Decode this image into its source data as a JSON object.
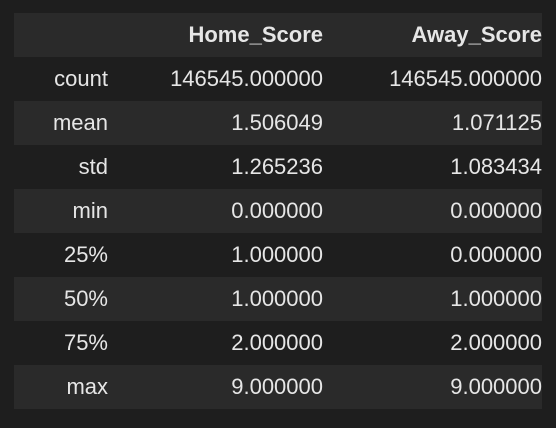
{
  "table": {
    "columns": [
      "",
      "Home_Score",
      "Away_Score"
    ],
    "rows": [
      {
        "index": "count",
        "home": "146545.000000",
        "away": "146545.000000"
      },
      {
        "index": "mean",
        "home": "1.506049",
        "away": "1.071125"
      },
      {
        "index": "std",
        "home": "1.265236",
        "away": "1.083434"
      },
      {
        "index": "min",
        "home": "0.000000",
        "away": "0.000000"
      },
      {
        "index": "25%",
        "home": "1.000000",
        "away": "0.000000"
      },
      {
        "index": "50%",
        "home": "1.000000",
        "away": "1.000000"
      },
      {
        "index": "75%",
        "home": "2.000000",
        "away": "2.000000"
      },
      {
        "index": "max",
        "home": "9.000000",
        "away": "9.000000"
      }
    ]
  },
  "colors": {
    "background": "#1e1e1e",
    "row_alt": "#2a2a2a",
    "text": "#e6e6e6"
  }
}
